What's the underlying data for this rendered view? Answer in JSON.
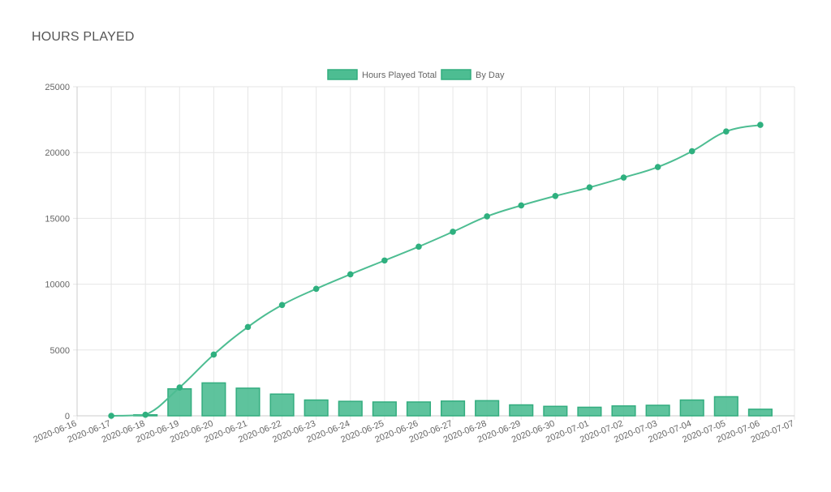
{
  "page": {
    "title": "HOURS PLAYED"
  },
  "chart_data": {
    "type": "bar",
    "title": "",
    "xlabel": "",
    "ylabel": "",
    "x_tick_labels": [
      "2020-06-16",
      "2020-06-17",
      "2020-06-18",
      "2020-06-19",
      "2020-06-20",
      "2020-06-21",
      "2020-06-22",
      "2020-06-23",
      "2020-06-24",
      "2020-06-25",
      "2020-06-26",
      "2020-06-27",
      "2020-06-28",
      "2020-06-29",
      "2020-06-30",
      "2020-07-01",
      "2020-07-02",
      "2020-07-03",
      "2020-07-04",
      "2020-07-05",
      "2020-07-06",
      "2020-07-07"
    ],
    "y_ticks": [
      0,
      5000,
      10000,
      15000,
      20000,
      25000
    ],
    "ylim": [
      0,
      25000
    ],
    "grid": true,
    "legend_position": "top-center",
    "colors": {
      "line": "#4dbd92",
      "point": "#2fb07f",
      "bar_fill": "#4dbd92",
      "bar_stroke": "#33ad7f",
      "grid": "#e6e6e6"
    },
    "series": [
      {
        "name": "Hours Played Total",
        "type": "line",
        "x": [
          "2020-06-17",
          "2020-06-18",
          "2020-06-19",
          "2020-06-20",
          "2020-06-21",
          "2020-06-22",
          "2020-06-23",
          "2020-06-24",
          "2020-06-25",
          "2020-06-26",
          "2020-06-27",
          "2020-06-28",
          "2020-06-29",
          "2020-06-30",
          "2020-07-01",
          "2020-07-02",
          "2020-07-03",
          "2020-07-04",
          "2020-07-05",
          "2020-07-06"
        ],
        "values": [
          0,
          80,
          2150,
          4650,
          6750,
          8420,
          9650,
          10750,
          11800,
          12850,
          13980,
          15150,
          15980,
          16700,
          17350,
          18100,
          18900,
          20100,
          21600,
          22100
        ]
      },
      {
        "name": "By Day",
        "type": "bar",
        "x": [
          "2020-06-17",
          "2020-06-18",
          "2020-06-19",
          "2020-06-20",
          "2020-06-21",
          "2020-06-22",
          "2020-06-23",
          "2020-06-24",
          "2020-06-25",
          "2020-06-26",
          "2020-06-27",
          "2020-06-28",
          "2020-06-29",
          "2020-06-30",
          "2020-07-01",
          "2020-07-02",
          "2020-07-03",
          "2020-07-04",
          "2020-07-05",
          "2020-07-06"
        ],
        "values": [
          0,
          80,
          2050,
          2500,
          2100,
          1650,
          1200,
          1100,
          1050,
          1050,
          1120,
          1150,
          830,
          720,
          650,
          750,
          800,
          1200,
          1450,
          500
        ]
      }
    ]
  }
}
